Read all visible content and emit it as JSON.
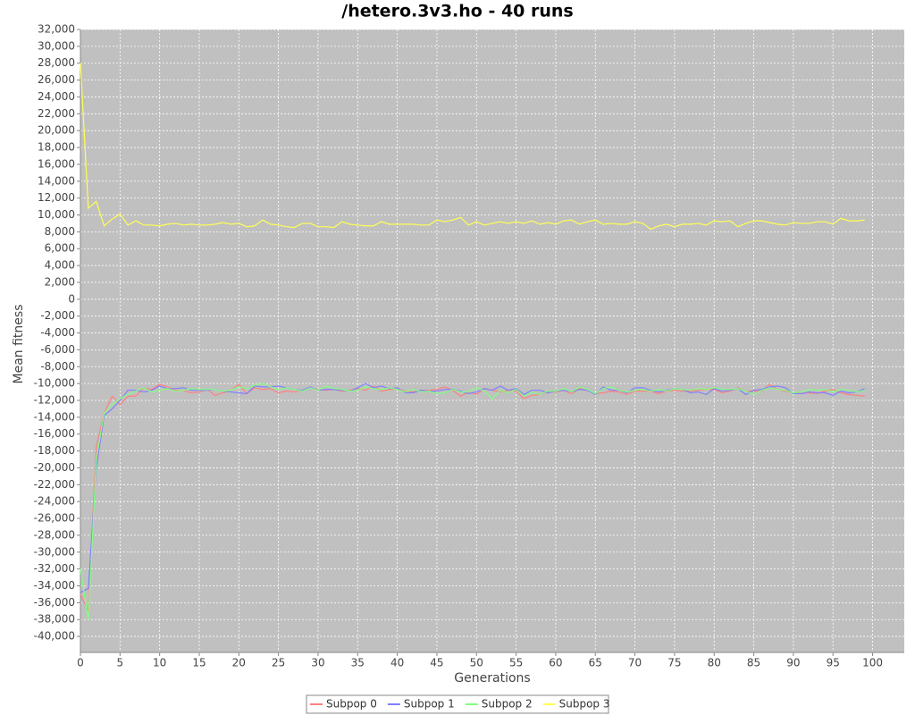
{
  "chart_data": {
    "type": "line",
    "title": "/hetero.3v3.ho - 40 runs",
    "x_label": "Generations",
    "y_label": "Mean fitness",
    "grid": true,
    "legend": "bottom",
    "xlim": [
      0,
      104
    ],
    "xticks": [
      0,
      5,
      10,
      15,
      20,
      25,
      30,
      35,
      40,
      45,
      50,
      55,
      60,
      65,
      70,
      75,
      80,
      85,
      90,
      95,
      100
    ],
    "ylim": [
      -41900,
      32000
    ],
    "yticks": [
      {
        "value": -40000,
        "label": "-40,000"
      },
      {
        "value": -38000,
        "label": "-38,000"
      },
      {
        "value": -36000,
        "label": "-36,000"
      },
      {
        "value": -34000,
        "label": "-34,000"
      },
      {
        "value": -32000,
        "label": "-32,000"
      },
      {
        "value": -30000,
        "label": "-30,000"
      },
      {
        "value": -28000,
        "label": "-28,000"
      },
      {
        "value": -26000,
        "label": "-26,000"
      },
      {
        "value": -24000,
        "label": "-24,000"
      },
      {
        "value": -22000,
        "label": "-22,000"
      },
      {
        "value": -20000,
        "label": "-20,000"
      },
      {
        "value": -18000,
        "label": "-18,000"
      },
      {
        "value": -16000,
        "label": "-16,000"
      },
      {
        "value": -14000,
        "label": "-14,000"
      },
      {
        "value": -12000,
        "label": "-12,000"
      },
      {
        "value": -10000,
        "label": "-10,000"
      },
      {
        "value": -8000,
        "label": "-8,000"
      },
      {
        "value": -6000,
        "label": "-6,000"
      },
      {
        "value": -4000,
        "label": "-4,000"
      },
      {
        "value": -2000,
        "label": "-2,000"
      },
      0,
      {
        "value": 2000,
        "label": "2,000"
      },
      {
        "value": 4000,
        "label": "4,000"
      },
      {
        "value": 6000,
        "label": "6,000"
      },
      {
        "value": 8000,
        "label": "8,000"
      },
      {
        "value": 10000,
        "label": "10,000"
      },
      {
        "value": 12000,
        "label": "12,000"
      },
      {
        "value": 14000,
        "label": "14,000"
      },
      {
        "value": 16000,
        "label": "16,000"
      },
      {
        "value": 18000,
        "label": "18,000"
      },
      {
        "value": 20000,
        "label": "20,000"
      },
      {
        "value": 22000,
        "label": "22,000"
      },
      {
        "value": 24000,
        "label": "24,000"
      },
      {
        "value": 26000,
        "label": "26,000"
      },
      {
        "value": 28000,
        "label": "28,000"
      },
      {
        "value": 30000,
        "label": "30,000"
      },
      {
        "value": 32000,
        "label": "32,000"
      }
    ],
    "x": [
      0,
      1,
      2,
      3,
      4,
      5,
      6,
      7,
      8,
      9,
      10,
      11,
      12,
      13,
      14,
      15,
      16,
      17,
      18,
      19,
      20,
      21,
      22,
      23,
      24,
      25,
      26,
      27,
      28,
      29,
      30,
      31,
      32,
      33,
      34,
      35,
      36,
      37,
      38,
      39,
      40,
      41,
      42,
      43,
      44,
      45,
      46,
      47,
      48,
      49,
      50,
      51,
      52,
      53,
      54,
      55,
      56,
      57,
      58,
      59,
      60,
      61,
      62,
      63,
      64,
      65,
      66,
      67,
      68,
      69,
      70,
      71,
      72,
      73,
      74,
      75,
      76,
      77,
      78,
      79,
      80,
      81,
      82,
      83,
      84,
      85,
      86,
      87,
      88,
      89,
      90,
      91,
      92,
      93,
      94,
      95,
      96,
      97,
      98,
      99
    ],
    "series": [
      {
        "name": "Subpop 0",
        "color": "#ff8080",
        "values": [
          -35000,
          -37000,
          -17500,
          -13500,
          -11500,
          -12500,
          -11500,
          -11500,
          -10500,
          -10700,
          -10100,
          -10400,
          -10800,
          -10800,
          -11100,
          -11000,
          -10700,
          -11400,
          -11100,
          -10800,
          -10100,
          -11200,
          -10500,
          -10700,
          -10600,
          -11100,
          -10900,
          -11000,
          -10800,
          -10500,
          -10700,
          -10800,
          -10700,
          -10900,
          -10800,
          -10600,
          -10800,
          -10300,
          -10900,
          -10700,
          -10600,
          -10900,
          -11000,
          -10800,
          -10800,
          -10700,
          -10400,
          -10800,
          -11500,
          -11000,
          -11300,
          -10600,
          -10800,
          -11000,
          -10800,
          -10900,
          -11800,
          -11400,
          -11300,
          -11000,
          -11000,
          -10800,
          -11200,
          -10600,
          -10800,
          -11200,
          -11100,
          -10900,
          -11000,
          -11300,
          -10900,
          -10900,
          -10900,
          -11200,
          -10900,
          -10800,
          -10900,
          -10900,
          -10800,
          -10700,
          -10700,
          -11100,
          -10900,
          -10500,
          -10900,
          -10900,
          -10900,
          -10100,
          -10700,
          -10900,
          -11100,
          -11200,
          -11100,
          -11200,
          -10900,
          -10700,
          -11100,
          -11300,
          -11400,
          -11500
        ]
      },
      {
        "name": "Subpop 1",
        "color": "#8080ff",
        "values": [
          -34800,
          -34300,
          -20000,
          -13800,
          -13000,
          -12000,
          -10800,
          -10800,
          -11000,
          -10800,
          -10300,
          -10600,
          -10600,
          -10500,
          -10800,
          -10800,
          -10800,
          -10700,
          -10900,
          -11000,
          -11100,
          -11200,
          -10300,
          -10400,
          -10400,
          -10300,
          -10500,
          -10700,
          -10800,
          -10400,
          -10800,
          -10700,
          -10700,
          -10800,
          -10900,
          -10500,
          -10000,
          -10500,
          -10300,
          -10600,
          -10500,
          -11100,
          -11100,
          -10800,
          -10900,
          -10900,
          -10700,
          -10700,
          -10900,
          -11200,
          -11000,
          -10600,
          -10800,
          -10300,
          -10800,
          -10600,
          -11300,
          -10800,
          -10800,
          -11100,
          -10900,
          -10800,
          -11000,
          -10700,
          -10800,
          -11300,
          -10400,
          -10800,
          -10800,
          -11100,
          -10500,
          -10500,
          -10800,
          -11000,
          -10800,
          -10600,
          -10700,
          -11100,
          -11000,
          -11300,
          -10600,
          -10900,
          -10800,
          -10600,
          -11300,
          -10800,
          -10700,
          -10400,
          -10300,
          -10500,
          -11200,
          -11200,
          -11000,
          -11100,
          -11100,
          -11400,
          -10900,
          -11100,
          -11000,
          -10600
        ]
      },
      {
        "name": "Subpop 2",
        "color": "#80ff80",
        "values": [
          -32000,
          -38000,
          -19000,
          -13500,
          -12500,
          -11800,
          -11300,
          -10900,
          -10500,
          -11000,
          -10800,
          -10600,
          -10900,
          -10800,
          -10600,
          -10700,
          -10700,
          -10700,
          -10900,
          -10800,
          -10400,
          -10600,
          -10200,
          -10000,
          -10400,
          -10700,
          -10500,
          -10700,
          -10900,
          -10500,
          -10800,
          -10300,
          -10600,
          -10700,
          -10900,
          -10800,
          -10400,
          -10600,
          -10700,
          -10500,
          -10700,
          -11000,
          -10700,
          -11000,
          -10900,
          -11200,
          -11100,
          -10700,
          -11000,
          -11000,
          -10500,
          -10900,
          -11800,
          -10800,
          -11100,
          -10700,
          -11500,
          -11000,
          -11300,
          -10900,
          -10900,
          -10600,
          -11000,
          -10400,
          -10700,
          -11200,
          -10600,
          -10400,
          -10800,
          -11000,
          -10800,
          -10700,
          -10900,
          -10700,
          -10900,
          -10600,
          -10700,
          -10800,
          -10600,
          -10700,
          -10500,
          -10700,
          -10700,
          -10600,
          -10900,
          -11300,
          -10800,
          -10500,
          -10700,
          -10800,
          -11100,
          -11000,
          -10700,
          -10800,
          -10700,
          -11000,
          -10700,
          -10800,
          -11000,
          -10800
        ]
      },
      {
        "name": "Subpop 3",
        "color": "#ffff55",
        "values": [
          28000,
          10800,
          11600,
          8700,
          9500,
          10100,
          8800,
          9300,
          8800,
          8800,
          8700,
          8900,
          9000,
          8800,
          8900,
          8800,
          8800,
          8900,
          9100,
          8900,
          9000,
          8600,
          8700,
          9400,
          8900,
          8800,
          8600,
          8500,
          9000,
          9000,
          8600,
          8600,
          8500,
          9200,
          8900,
          8800,
          8700,
          8700,
          9200,
          8900,
          8900,
          8900,
          8900,
          8800,
          8800,
          9400,
          9200,
          9400,
          9700,
          8800,
          9200,
          8800,
          9000,
          9200,
          9000,
          9200,
          9000,
          9300,
          8900,
          9100,
          8900,
          9300,
          9400,
          8900,
          9200,
          9400,
          8900,
          9000,
          8900,
          8900,
          9200,
          9000,
          8300,
          8700,
          8900,
          8600,
          8900,
          8900,
          9000,
          8800,
          9300,
          9200,
          9300,
          8600,
          9000,
          9300,
          9300,
          9100,
          8900,
          8800,
          9100,
          9000,
          9000,
          9200,
          9200,
          8900,
          9600,
          9300,
          9300,
          9400
        ]
      }
    ]
  }
}
